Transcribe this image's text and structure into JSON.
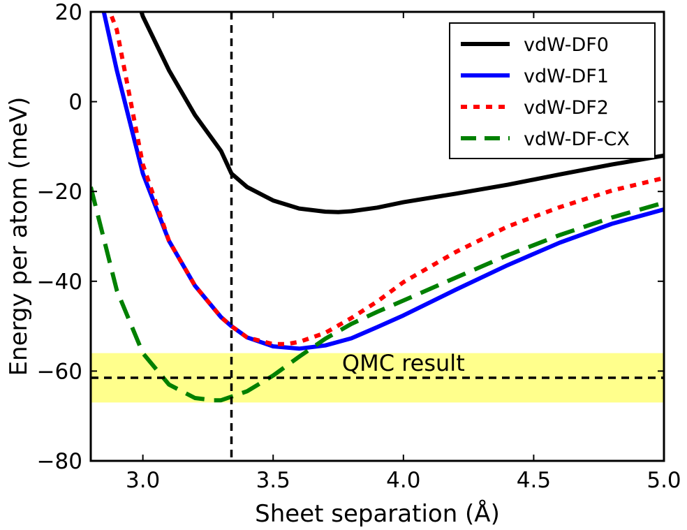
{
  "chart_data": {
    "type": "line",
    "xlabel": "Sheet separation (Å)",
    "ylabel": "Energy per atom (meV)",
    "xlim": [
      2.8,
      5.0
    ],
    "ylim": [
      -80,
      20
    ],
    "xticks": [
      3.0,
      3.5,
      4.0,
      4.5,
      5.0
    ],
    "xtick_labels": [
      "3.0",
      "3.5",
      "4.0",
      "4.5",
      "5.0"
    ],
    "yticks": [
      -80,
      -60,
      -40,
      -20,
      0,
      20
    ],
    "ytick_labels": [
      "−80",
      "−60",
      "−40",
      "−20",
      "0",
      "20"
    ],
    "grid": false,
    "legend_position": "top-right",
    "series": [
      {
        "name": "vdW-DF0",
        "color": "#000000",
        "style": "solid",
        "x": [
          2.9,
          2.95,
          3.0,
          3.1,
          3.2,
          3.3,
          3.34,
          3.4,
          3.5,
          3.6,
          3.7,
          3.75,
          3.8,
          3.9,
          4.0,
          4.2,
          4.4,
          4.6,
          4.8,
          5.0
        ],
        "y": [
          38,
          28,
          19,
          7,
          -3,
          -11,
          -16,
          -19,
          -22,
          -23.8,
          -24.5,
          -24.6,
          -24.4,
          -23.6,
          -22.4,
          -20.5,
          -18.5,
          -16.2,
          -14,
          -12
        ]
      },
      {
        "name": "vdW-DF1",
        "color": "#0000ff",
        "style": "solid",
        "x": [
          2.85,
          2.9,
          3.0,
          3.1,
          3.2,
          3.3,
          3.34,
          3.4,
          3.5,
          3.6,
          3.7,
          3.8,
          3.9,
          4.0,
          4.2,
          4.4,
          4.6,
          4.8,
          5.0
        ],
        "y": [
          20,
          7,
          -16,
          -31,
          -41,
          -48,
          -50,
          -52.5,
          -54.5,
          -55,
          -54.3,
          -52.7,
          -50.2,
          -47.6,
          -41.9,
          -36.4,
          -31.4,
          -27.2,
          -24
        ]
      },
      {
        "name": "vdW-DF2",
        "color": "#ff0000",
        "style": "dotted",
        "x": [
          2.88,
          2.9,
          3.0,
          3.1,
          3.2,
          3.3,
          3.34,
          3.4,
          3.5,
          3.55,
          3.6,
          3.7,
          3.8,
          3.9,
          4.0,
          4.2,
          4.4,
          4.6,
          4.8,
          5.0
        ],
        "y": [
          19,
          16,
          -14,
          -31,
          -41,
          -48,
          -50,
          -52.5,
          -54,
          -54,
          -53.5,
          -51.5,
          -48.2,
          -44.5,
          -40.2,
          -33.5,
          -27.8,
          -23.5,
          -19.8,
          -17
        ]
      },
      {
        "name": "vdW-DF-CX",
        "color": "#008000",
        "style": "dashed",
        "x": [
          2.8,
          2.9,
          3.0,
          3.1,
          3.2,
          3.27,
          3.3,
          3.4,
          3.5,
          3.6,
          3.7,
          3.8,
          3.9,
          4.0,
          4.2,
          4.4,
          4.6,
          4.8,
          5.0
        ],
        "y": [
          -19,
          -42,
          -56,
          -63,
          -66,
          -66.5,
          -66.5,
          -64.5,
          -61,
          -56.8,
          -52.8,
          -49.5,
          -46.8,
          -44.3,
          -39.2,
          -34.2,
          -29.7,
          -25.8,
          -22.5
        ]
      }
    ],
    "reference_lines": [
      {
        "orientation": "vertical",
        "x": 3.34,
        "color": "#000000",
        "style": "dashed"
      },
      {
        "orientation": "horizontal",
        "y": -61.5,
        "color": "#000000",
        "style": "dashed"
      }
    ],
    "bands": [
      {
        "y_range": [
          -67,
          -56
        ],
        "color": "#ffff66"
      }
    ],
    "annotations": [
      {
        "text": "QMC result",
        "x": 4.0,
        "y": -58.5
      }
    ]
  }
}
